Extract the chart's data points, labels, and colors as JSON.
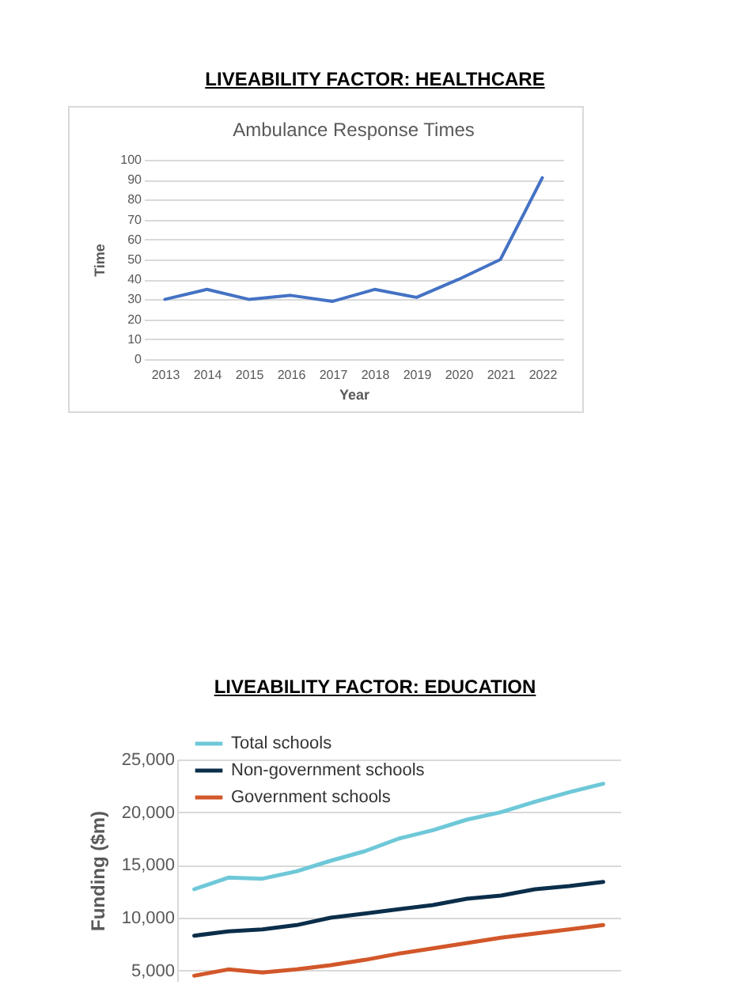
{
  "chart_data": [
    {
      "type": "line",
      "title": "LIVEABILITY FACTOR: HEALTHCARE",
      "subtitle": "Ambulance Response Times",
      "xlabel": "Year",
      "ylabel": "Time",
      "categories": [
        "2013",
        "2014",
        "2015",
        "2016",
        "2017",
        "2018",
        "2019",
        "2020",
        "2021",
        "2022"
      ],
      "values": [
        30,
        35,
        30,
        32,
        29,
        35,
        31,
        40,
        50,
        91
      ],
      "color": "#4472c4",
      "ylim": [
        0,
        100
      ],
      "yticks": [
        0,
        10,
        20,
        30,
        40,
        50,
        60,
        70,
        80,
        90,
        100
      ],
      "grid": "y"
    },
    {
      "type": "line",
      "title": "LIVEABILITY FACTOR: EDUCATION",
      "ylabel": "Funding ($m)",
      "categories": [
        null,
        null,
        null,
        null,
        null,
        null,
        null,
        null,
        null,
        null,
        null,
        null,
        null
      ],
      "series": [
        {
          "name": "Total schools",
          "color": "#6ec8d8",
          "values": [
            12700,
            13800,
            13700,
            14400,
            15400,
            16300,
            17500,
            18300,
            19300,
            20000,
            21000,
            21900,
            22700
          ]
        },
        {
          "name": "Non-government schools",
          "color": "#0b2e4a",
          "values": [
            8300,
            8700,
            8900,
            9300,
            10000,
            10400,
            10800,
            11200,
            11800,
            12100,
            12700,
            13000,
            13400
          ]
        },
        {
          "name": "Government schools",
          "color": "#d2572a",
          "values": [
            4500,
            5100,
            4800,
            5100,
            5500,
            6000,
            6600,
            7100,
            7600,
            8100,
            8500,
            8900,
            9300
          ]
        }
      ],
      "ylim": [
        4000,
        25000
      ],
      "yticks": [
        {
          "value": 5000,
          "label": "5,000"
        },
        {
          "value": 10000,
          "label": "10,000"
        },
        {
          "value": 15000,
          "label": "15,000"
        },
        {
          "value": 20000,
          "label": "20,000"
        },
        {
          "value": 25000,
          "label": "25,000"
        }
      ],
      "grid": "y",
      "legend": "top left",
      "tick_labels": "y"
    }
  ]
}
